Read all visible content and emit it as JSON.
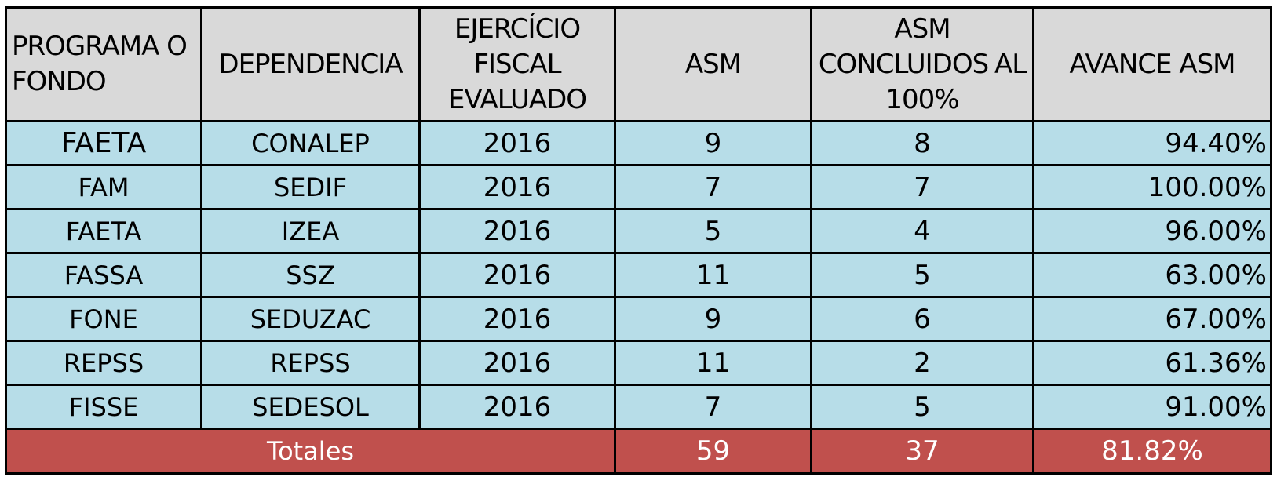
{
  "table": {
    "headers": [
      "PROGRAMA O FONDO",
      "DEPENDENCIA",
      "EJERCÍCIO FISCAL EVALUADO",
      "ASM",
      "ASM CONCLUIDOS  AL 100%",
      "AVANCE ASM"
    ],
    "rows": [
      {
        "programa": "FAETA",
        "dependencia": "CONALEP",
        "ejercicio": "2016",
        "asm": "9",
        "concluidos": "8",
        "avance": "94.40%"
      },
      {
        "programa": "FAM",
        "dependencia": "SEDIF",
        "ejercicio": "2016",
        "asm": "7",
        "concluidos": "7",
        "avance": "100.00%"
      },
      {
        "programa": "FAETA",
        "dependencia": "IZEA",
        "ejercicio": "2016",
        "asm": "5",
        "concluidos": "4",
        "avance": "96.00%"
      },
      {
        "programa": "FASSA",
        "dependencia": "SSZ",
        "ejercicio": "2016",
        "asm": "11",
        "concluidos": "5",
        "avance": "63.00%"
      },
      {
        "programa": "FONE",
        "dependencia": "SEDUZAC",
        "ejercicio": "2016",
        "asm": "9",
        "concluidos": "6",
        "avance": "67.00%"
      },
      {
        "programa": "REPSS",
        "dependencia": "REPSS",
        "ejercicio": "2016",
        "asm": "11",
        "concluidos": "2",
        "avance": "61.36%"
      },
      {
        "programa": "FISSE",
        "dependencia": "SEDESOL",
        "ejercicio": "2016",
        "asm": "7",
        "concluidos": "5",
        "avance": "91.00%"
      }
    ],
    "totals": {
      "label": "Totales",
      "asm": "59",
      "concluidos": "37",
      "avance": "81.82%"
    }
  },
  "colors": {
    "header_bg": "#d9d9d9",
    "row_bg": "#b7dde8",
    "totals_bg": "#c0504d",
    "totals_text": "#ffffff"
  }
}
